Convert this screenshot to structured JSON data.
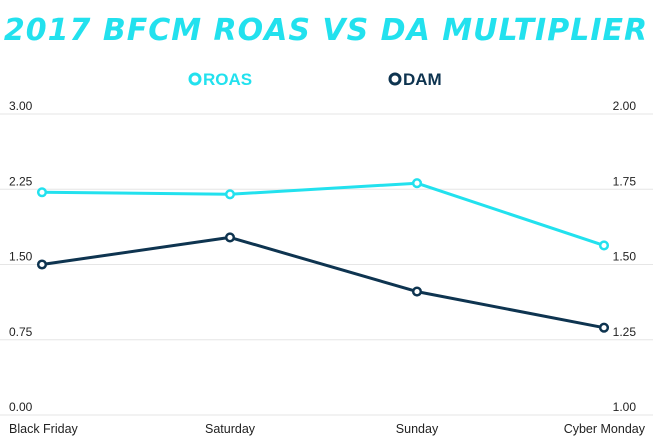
{
  "colors": {
    "roas": "#22e1ee",
    "dam": "#0e3450",
    "title": "#22e1ee",
    "grid": "#e6e6e6"
  },
  "chart_data": {
    "type": "line",
    "title": "2017 BFCM ROAS VS DA MULTIPLIER",
    "categories": [
      "Black Friday",
      "Saturday",
      "Sunday",
      "Cyber Monday"
    ],
    "series": [
      {
        "name": "ROAS",
        "axis": "left",
        "color": "#22e1ee",
        "values": [
          2.22,
          2.2,
          2.31,
          1.69
        ]
      },
      {
        "name": "DAM",
        "axis": "right",
        "color": "#0e3450",
        "values": [
          1.5,
          1.59,
          1.41,
          1.29
        ]
      }
    ],
    "y_left": {
      "ylim": [
        0,
        3
      ],
      "ticks": [
        "0.00",
        "0.75",
        "1.50",
        "2.25",
        "3.00"
      ],
      "tick_values": [
        0,
        0.75,
        1.5,
        2.25,
        3.0
      ]
    },
    "y_right": {
      "ylim": [
        1,
        2
      ],
      "ticks": [
        "1.00",
        "1.25",
        "1.50",
        "1.75",
        "2.00"
      ],
      "tick_values": [
        1.0,
        1.25,
        1.5,
        1.75,
        2.0
      ]
    },
    "grid": true,
    "legend": "top-center"
  }
}
